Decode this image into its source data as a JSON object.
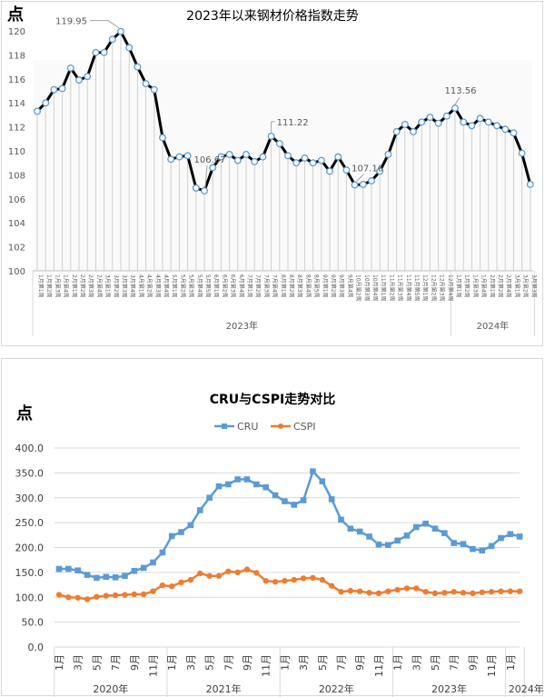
{
  "chart_data": [
    {
      "type": "line",
      "title": "2023年以来钢材价格指数走势",
      "ylabel": "点",
      "ylim": [
        100,
        120
      ],
      "yticks": [
        "100",
        "102",
        "104",
        "106",
        "108",
        "110",
        "112",
        "114",
        "116",
        "118",
        "120"
      ],
      "grid": "vertical drop lines",
      "years": [
        {
          "label": "2023年",
          "count": 50
        },
        {
          "label": "2024年",
          "count": 10
        }
      ],
      "x": [
        "1月第1周",
        "1月第2周",
        "1月第3周",
        "1月第4周",
        "2月第1周",
        "2月第2周",
        "2月第3周",
        "2月第4周",
        "3月第1周",
        "3月第2周",
        "3月第3周",
        "3月第4周",
        "4月第1周",
        "4月第2周",
        "4月第3周",
        "4月第4周",
        "5月第1周",
        "5月第2周",
        "5月第3周",
        "5月第4周",
        "5月第5周",
        "6月第1周",
        "6月第2周",
        "6月第3周",
        "6月第4周",
        "7月第1周",
        "7月第2周",
        "7月第3周",
        "7月第4周",
        "8月第1周",
        "8月第2周",
        "8月第3周",
        "8月第4周",
        "8月第5周",
        "9月第1周",
        "9月第2周",
        "9月第3周",
        "9月第4周",
        "10月第2周",
        "10月第3周",
        "10月第4周",
        "11月第1周",
        "11月第2周",
        "11月第3周",
        "11月第4周",
        "11月第5周",
        "12月第1周",
        "12月第2周",
        "12月第3周",
        "12月第4周",
        "1月第1周",
        "1月第2周",
        "1月第3周",
        "1月第4周",
        "2月第1周",
        "2月第2周",
        "2月第4周",
        "3月第1周",
        "3月第2周",
        "3月第3周"
      ],
      "values": [
        113.3,
        114.0,
        115.1,
        115.2,
        116.9,
        115.9,
        116.2,
        118.2,
        118.2,
        119.3,
        119.95,
        118.6,
        117.0,
        115.6,
        115.1,
        111.1,
        109.3,
        109.5,
        109.6,
        106.9,
        106.67,
        108.6,
        109.5,
        109.7,
        109.2,
        109.7,
        109.1,
        109.5,
        111.22,
        110.6,
        109.6,
        109.0,
        109.4,
        109.0,
        109.2,
        108.3,
        109.5,
        108.4,
        107.16,
        107.2,
        107.5,
        108.3,
        109.7,
        111.6,
        112.2,
        111.6,
        112.4,
        112.8,
        112.3,
        112.9,
        113.56,
        112.4,
        112.1,
        112.7,
        112.4,
        112.1,
        111.8,
        111.5,
        109.8,
        107.2
      ],
      "annotations": [
        {
          "index": 10,
          "text": "119.95"
        },
        {
          "index": 20,
          "text": "106.67"
        },
        {
          "index": 28,
          "text": "111.22"
        },
        {
          "index": 38,
          "text": "107.16"
        },
        {
          "index": 50,
          "text": "113.56"
        }
      ],
      "colors": {
        "line": "#000000",
        "marker": "#5b9bd5"
      }
    },
    {
      "type": "line",
      "title": "CRU与CSPI走势对比",
      "ylabel": "点",
      "ylim": [
        0,
        400
      ],
      "yticks": [
        "0.0",
        "50.0",
        "100.0",
        "150.0",
        "200.0",
        "250.0",
        "300.0",
        "350.0",
        "400.0"
      ],
      "legend": "top",
      "years": [
        {
          "label": "2020年",
          "count": 12
        },
        {
          "label": "2021年",
          "count": 12
        },
        {
          "label": "2022年",
          "count": 12
        },
        {
          "label": "2023年",
          "count": 12
        },
        {
          "label": "2024年",
          "count": 2
        }
      ],
      "month_labels": [
        "1月",
        "",
        "3月",
        "",
        "5月",
        "",
        "7月",
        "",
        "9月",
        "",
        "11月",
        ""
      ],
      "series": [
        {
          "name": "CRU",
          "color": "#5b9bd5",
          "values": [
            157,
            157,
            154,
            145,
            139,
            141,
            140,
            143,
            153,
            159,
            170,
            190,
            223,
            231,
            245,
            275,
            300,
            323,
            327,
            337,
            337,
            327,
            321,
            305,
            293,
            286,
            295,
            353,
            333,
            297,
            256,
            238,
            232,
            222,
            206,
            205,
            214,
            224,
            241,
            248,
            238,
            229,
            209,
            207,
            197,
            194,
            203,
            219,
            227,
            222
          ]
        },
        {
          "name": "CSPI",
          "color": "#ed7d31",
          "values": [
            105,
            100,
            99,
            96,
            101,
            103,
            104,
            105,
            106,
            106,
            112,
            124,
            122,
            130,
            135,
            148,
            143,
            143,
            152,
            150,
            156,
            149,
            133,
            131,
            133,
            135,
            138,
            139,
            135,
            123,
            111,
            113,
            112,
            109,
            108,
            112,
            115,
            118,
            118,
            111,
            108,
            109,
            111,
            109,
            108,
            110,
            111,
            112,
            112,
            112
          ]
        }
      ]
    }
  ]
}
